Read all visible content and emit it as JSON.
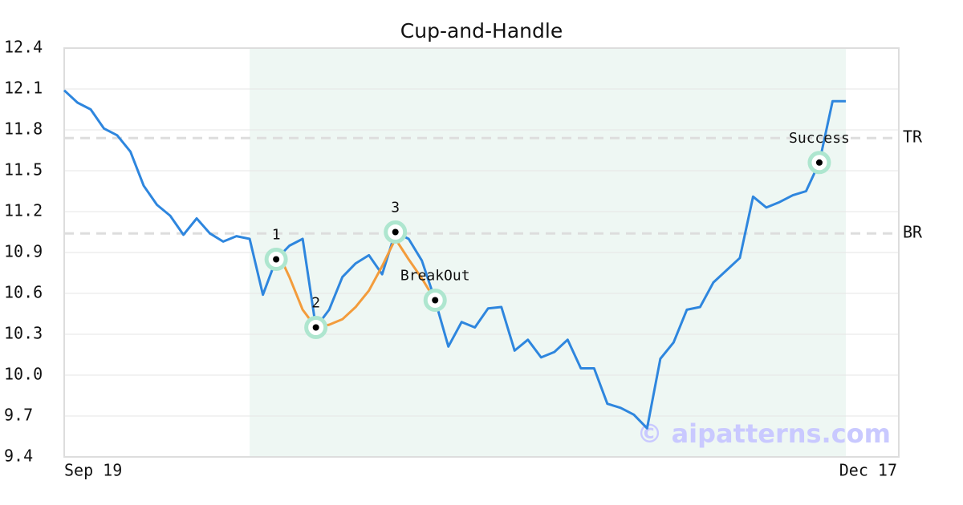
{
  "chart_data": {
    "type": "line",
    "title": "Cup-and-Handle",
    "categories": [
      "Sep 19",
      null,
      null,
      null,
      null,
      null,
      null,
      null,
      null,
      null,
      null,
      null,
      null,
      null,
      null,
      null,
      null,
      null,
      null,
      null,
      null,
      null,
      null,
      null,
      null,
      null,
      null,
      null,
      null,
      null,
      null,
      null,
      null,
      null,
      null,
      null,
      null,
      null,
      null,
      null,
      null,
      null,
      null,
      null,
      null,
      null,
      null,
      null,
      null,
      null,
      null,
      null,
      null,
      null,
      null,
      null,
      null,
      null,
      null,
      null,
      null,
      null,
      null,
      "Dec 17"
    ],
    "series": [
      {
        "color": "#2e86de",
        "values": [
          12.09,
          12.0,
          11.95,
          11.81,
          11.76,
          11.64,
          11.39,
          11.25,
          11.17,
          11.03,
          11.15,
          11.04,
          10.98,
          11.02,
          11.0,
          10.59,
          10.85,
          10.95,
          11.0,
          10.35,
          10.48,
          10.72,
          10.82,
          10.88,
          10.74,
          11.05,
          11.0,
          10.84,
          10.55,
          10.21,
          10.39,
          10.35,
          10.49,
          10.5,
          10.18,
          10.26,
          10.13,
          10.17,
          10.26,
          10.05,
          10.05,
          9.79,
          9.76,
          9.71,
          9.61,
          10.12,
          10.24,
          10.48,
          10.5,
          10.68,
          10.77,
          10.86,
          11.31,
          11.23,
          11.27,
          11.32,
          11.35,
          11.56,
          12.01,
          12.01,
          null,
          null,
          null,
          null
        ]
      },
      {
        "color": "#f39c3c",
        "values": [
          null,
          null,
          null,
          null,
          null,
          null,
          null,
          null,
          null,
          null,
          null,
          null,
          null,
          null,
          null,
          null,
          10.93,
          10.72,
          10.48,
          10.35,
          10.37,
          10.41,
          10.5,
          10.62,
          10.8,
          11.0,
          10.85,
          10.71,
          10.55,
          null,
          null,
          null,
          null,
          null,
          null,
          null,
          null,
          null,
          null,
          null,
          null,
          null,
          null,
          null,
          null,
          null,
          null,
          null,
          null,
          null,
          null,
          null,
          null,
          null,
          null,
          null,
          null,
          null,
          null,
          null,
          null,
          null,
          null,
          null
        ]
      }
    ],
    "highlight": {
      "start": 14,
      "end": 59,
      "color": "#eef7f3"
    },
    "levels": [
      {
        "label": "TR",
        "value": 11.74
      },
      {
        "label": "BR",
        "value": 11.04
      }
    ],
    "annotations": [
      {
        "label": "1",
        "index": 16,
        "value": 10.85
      },
      {
        "label": "2",
        "index": 19,
        "value": 10.35
      },
      {
        "label": "3",
        "index": 25,
        "value": 11.05
      },
      {
        "label": "BreakOut",
        "index": 28,
        "value": 10.55
      },
      {
        "label": "Success",
        "index": 57,
        "value": 11.56
      }
    ],
    "watermark": "© aipatterns.com",
    "ylim": [
      9.4,
      12.4
    ],
    "yticks": [
      9.4,
      9.7,
      {
        "value": 10,
        "label": "10.0"
      },
      10.3,
      10.6,
      10.9,
      11.2,
      11.5,
      11.8,
      12.1,
      12.4
    ],
    "grid": true
  }
}
